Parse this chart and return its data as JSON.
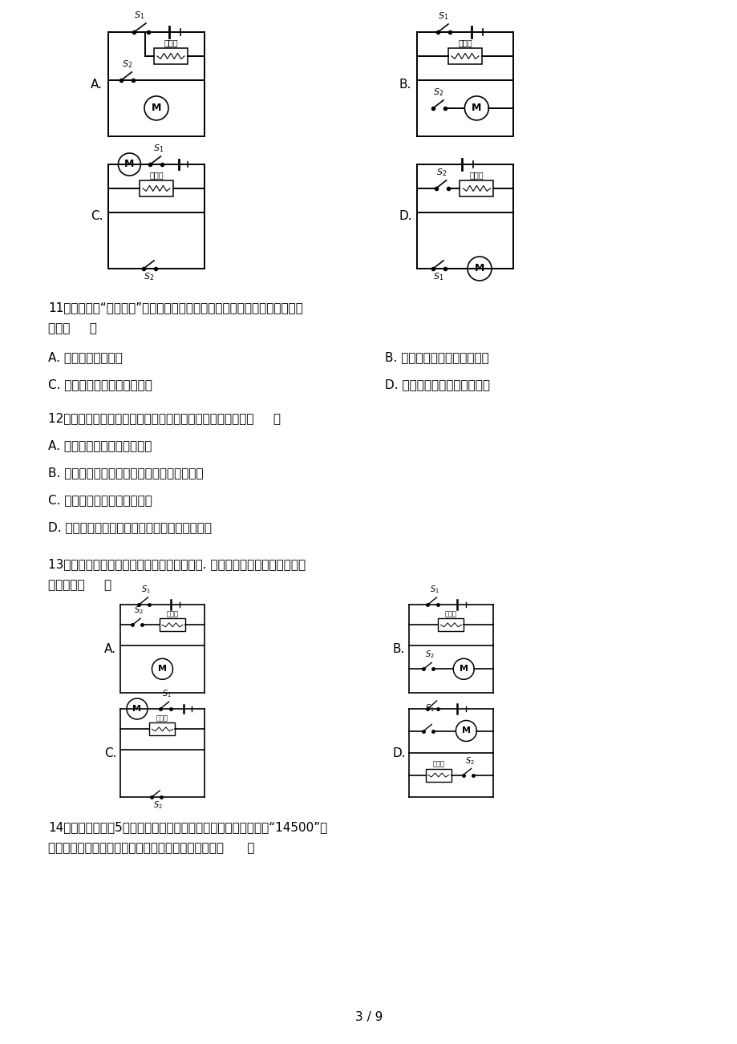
{
  "bg_color": "#ffffff",
  "text_color": "#000000",
  "page_number": "3 / 9",
  "q11": "11、人们常用“生沉熟浮”来判断饺子是否煮熟，煮熟后的饺子会漂起来的原",
  "q11b": "因是（     ）",
  "q11_A": "A. 饺子的重力减小了",
  "q11_B": "B. 饺子的重力和浮力都增大了",
  "q11_C": "C. 饺子的重力不变，浮力增大",
  "q11_D": "D. 饺子的重力和浮力都减小了",
  "q12": "12、下列有关起重机提升货物时机械效率的说法，正确的是（     ）",
  "q12_A": "A. 有用功越多，机械效率越高",
  "q12_B": "B. 同一起重机提起的货物越重，机械效率越高",
  "q12_C": "C. 额外功越少，机械效率越高",
  "q12_D": "D. 同一起重机提起同一货物越快，机械效率越高",
  "q13": "13、家庭常用的电吹风既能吹冷风又能吹热风. 下列电路中最符合电吹风工作",
  "q13b": "要求的是（     ）",
  "q14": "14、如图是常用的5号电池的示意图，其型号的另一种表示方法为“14500”，",
  "q14b": "前两位数是直径，后三位数是高度这型号电池高度为（      ）"
}
